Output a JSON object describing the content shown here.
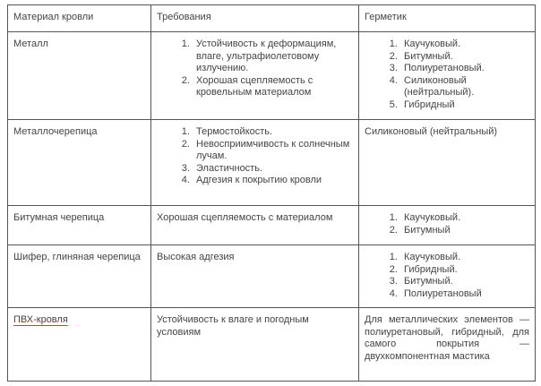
{
  "headers": [
    "Материал кровли",
    "Требования",
    "Герметик"
  ],
  "rows": [
    {
      "material": "Металл",
      "requirements": [
        "Устойчивость к деформациям, влаге, ультрафиолетовому излучению.",
        "Хорошая сцепляемость с кровельным материалом"
      ],
      "sealant": [
        "Каучуковый.",
        "Битумный.",
        "Полиуретановый.",
        "Силиконовый (нейтральный).",
        "Гибридный"
      ]
    },
    {
      "material": "Металлочерепица",
      "requirements": [
        "Термостойкость.",
        "Невосприимчивость к солнечным лучам.",
        "Эластичность.",
        "Адгезия к покрытию кровли"
      ],
      "sealant_text": "Силиконовый (нейтральный)"
    },
    {
      "material": "Битумная черепица",
      "requirements_text": "Хорошая сцепляемость с материалом",
      "sealant": [
        "Каучуковый.",
        "Битумный"
      ]
    },
    {
      "material": "Шифер, глиняная черепица",
      "requirements_text": "Высокая адгезия",
      "sealant": [
        "Каучуковый.",
        "Гибридный.",
        "Битумный.",
        "Полиуретановый"
      ]
    },
    {
      "material": "ПВХ-кровля",
      "requirements_text": "Устойчивость к влаге и погодным условиям",
      "sealant_text": "Для металлических элементов — полиуретановый, гибридный, для самого покрытия — двухкомпонентная мастика"
    }
  ]
}
